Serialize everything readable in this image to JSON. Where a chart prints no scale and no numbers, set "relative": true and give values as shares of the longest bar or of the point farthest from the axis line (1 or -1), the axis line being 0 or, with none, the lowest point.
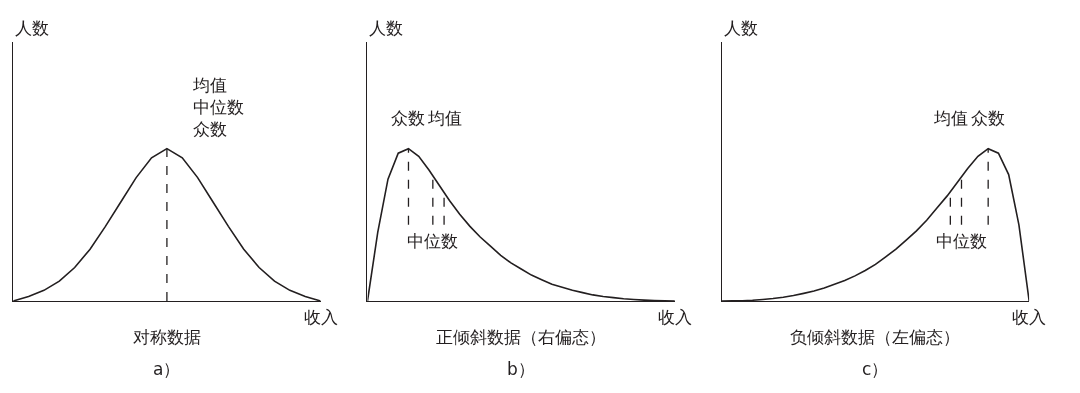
{
  "chart_data": [
    {
      "type": "line",
      "relative": true,
      "title": "对称数据",
      "xlabel": "收入",
      "ylabel": "人数",
      "annotations": [
        "均值",
        "中位数",
        "众数",
        "a）"
      ],
      "marker": "none",
      "line_style": "solid",
      "categories": [
        null,
        null,
        null,
        null,
        null,
        null,
        null,
        null,
        null,
        null,
        null,
        null,
        null,
        null,
        null,
        null,
        null,
        null,
        null,
        null,
        null
      ],
      "series": [
        {
          "color": "#231f20",
          "values": [
            0.0,
            0.03,
            0.07,
            0.13,
            0.22,
            0.34,
            0.49,
            0.65,
            0.81,
            0.94,
            1.0,
            0.94,
            0.81,
            0.65,
            0.49,
            0.34,
            0.22,
            0.13,
            0.07,
            0.03,
            0.0
          ]
        }
      ]
    },
    {
      "type": "line",
      "relative": true,
      "title": "正倾斜数据（右偏态）",
      "xlabel": "收入",
      "ylabel": "人数",
      "annotations": [
        "均值",
        "中位数",
        "众数",
        "b）"
      ],
      "marker": "none",
      "line_style": "solid",
      "categories": [
        null,
        null,
        null,
        null,
        null,
        null,
        null,
        null,
        null,
        null,
        null,
        null,
        null,
        null,
        null,
        null,
        null,
        null,
        null,
        null,
        null,
        null,
        null,
        null,
        null,
        null,
        null,
        null,
        null,
        null,
        null
      ],
      "series": [
        {
          "color": "#231f20",
          "values": [
            0.0,
            0.45,
            0.8,
            0.97,
            1.0,
            0.95,
            0.86,
            0.76,
            0.66,
            0.57,
            0.49,
            0.42,
            0.36,
            0.3,
            0.25,
            0.21,
            0.17,
            0.14,
            0.11,
            0.09,
            0.07,
            0.055,
            0.04,
            0.03,
            0.022,
            0.015,
            0.01,
            0.006,
            0.003,
            0.001,
            0.0
          ]
        }
      ]
    },
    {
      "type": "line",
      "relative": true,
      "title": "负倾斜数据（左偏态）",
      "xlabel": "收入",
      "ylabel": "人数",
      "annotations": [
        "均值",
        "中位数",
        "众数",
        "c）"
      ],
      "marker": "none",
      "line_style": "solid",
      "categories": [
        null,
        null,
        null,
        null,
        null,
        null,
        null,
        null,
        null,
        null,
        null,
        null,
        null,
        null,
        null,
        null,
        null,
        null,
        null,
        null,
        null,
        null,
        null,
        null,
        null,
        null,
        null,
        null,
        null,
        null,
        null
      ],
      "series": [
        {
          "color": "#231f20",
          "values": [
            0.0,
            0.001,
            0.002,
            0.005,
            0.01,
            0.016,
            0.025,
            0.036,
            0.05,
            0.065,
            0.085,
            0.11,
            0.135,
            0.165,
            0.2,
            0.24,
            0.29,
            0.34,
            0.4,
            0.46,
            0.53,
            0.61,
            0.69,
            0.78,
            0.87,
            0.95,
            1.0,
            0.97,
            0.83,
            0.5,
            0.0
          ]
        }
      ]
    }
  ]
}
